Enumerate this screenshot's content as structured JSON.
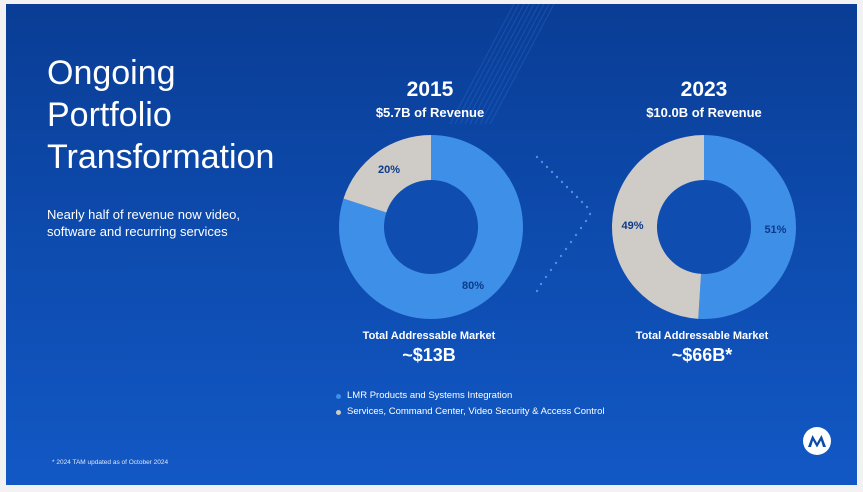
{
  "title_lines": [
    "Ongoing",
    "Portfolio",
    "Transformation"
  ],
  "subtitle": "Nearly half of revenue now video, software and recurring services",
  "colors": {
    "background": "#0d4aac",
    "lmr": "#3d8fe8",
    "services": "#cfcbc7",
    "label_dark": "#0d3a8a"
  },
  "charts": [
    {
      "year": "2015",
      "revenue": "$5.7B of Revenue",
      "tam_label": "Total Addressable Market",
      "tam_value": "~$13B"
    },
    {
      "year": "2023",
      "revenue": "$10.0B of Revenue",
      "tam_label": "Total Addressable Market",
      "tam_value": "~$66B*"
    }
  ],
  "legend": [
    {
      "label": "LMR Products and Systems Integration",
      "color": "#3d8fe8"
    },
    {
      "label": "Services, Command Center, Video Security & Access Control",
      "color": "#cfcbc7"
    }
  ],
  "footnote": "* 2024 TAM updated as of October 2024",
  "logo_icon": "motorola-logo-icon",
  "chart_data": [
    {
      "type": "pie",
      "title": "2015",
      "subtitle": "$5.7B of Revenue",
      "categories": [
        "LMR Products and Systems Integration",
        "Services, Command Center, Video Security & Access Control"
      ],
      "values": [
        80,
        20
      ],
      "value_labels": [
        "80%",
        "20%"
      ],
      "colors": [
        "#3d8fe8",
        "#cfcbc7"
      ],
      "donut": true
    },
    {
      "type": "pie",
      "title": "2023",
      "subtitle": "$10.0B of Revenue",
      "categories": [
        "LMR Products and Systems Integration",
        "Services, Command Center, Video Security & Access Control"
      ],
      "values": [
        51,
        49
      ],
      "value_labels": [
        "51%",
        "49%"
      ],
      "colors": [
        "#3d8fe8",
        "#cfcbc7"
      ],
      "donut": true
    }
  ]
}
